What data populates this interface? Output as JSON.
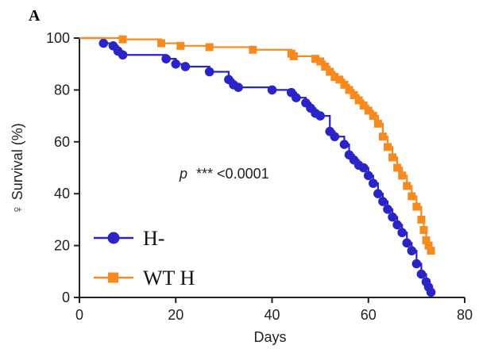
{
  "panel_label": "A",
  "chart_data": {
    "type": "line",
    "title": "",
    "xlabel": "Days",
    "ylabel": "♀ Survival (%)",
    "xlim": [
      0,
      80
    ],
    "ylim": [
      0,
      100
    ],
    "xticks": [
      "0",
      "20",
      "40",
      "60",
      "80"
    ],
    "yticks": [
      "0",
      "20",
      "40",
      "60",
      "80",
      "100"
    ],
    "grid": false,
    "legend_position": "bottom-left",
    "annotation": {
      "prefix": "p",
      "text": "*** <0.0001"
    },
    "series": [
      {
        "name": "H-",
        "color": "#2a24c8",
        "marker": "circle",
        "points": [
          [
            0,
            100
          ],
          [
            5,
            98
          ],
          [
            7,
            97
          ],
          [
            8,
            95
          ],
          [
            9,
            93.5
          ],
          [
            18,
            92
          ],
          [
            20,
            90
          ],
          [
            22,
            89
          ],
          [
            27,
            87
          ],
          [
            31,
            84
          ],
          [
            32,
            82
          ],
          [
            33,
            81
          ],
          [
            40,
            80
          ],
          [
            44,
            79
          ],
          [
            45,
            77
          ],
          [
            47,
            75
          ],
          [
            48,
            73
          ],
          [
            49,
            71
          ],
          [
            50,
            70
          ],
          [
            52,
            64
          ],
          [
            53,
            62
          ],
          [
            55,
            59
          ],
          [
            56,
            55
          ],
          [
            57,
            53
          ],
          [
            58,
            51
          ],
          [
            59,
            50
          ],
          [
            60,
            47
          ],
          [
            61,
            44
          ],
          [
            62,
            40
          ],
          [
            63,
            37
          ],
          [
            64,
            34
          ],
          [
            65,
            31
          ],
          [
            66,
            28
          ],
          [
            67,
            25
          ],
          [
            68,
            21
          ],
          [
            69,
            18
          ],
          [
            70,
            13
          ],
          [
            71,
            9
          ],
          [
            72,
            6
          ],
          [
            72.5,
            4
          ],
          [
            73,
            2
          ]
        ]
      },
      {
        "name": "WT H",
        "color": "#f7891f",
        "marker": "square",
        "points": [
          [
            0,
            100
          ],
          [
            9,
            99.5
          ],
          [
            17,
            98
          ],
          [
            21,
            97
          ],
          [
            27,
            96.5
          ],
          [
            36,
            95.5
          ],
          [
            44,
            94
          ],
          [
            44.5,
            93
          ],
          [
            49,
            92
          ],
          [
            50,
            91
          ],
          [
            51,
            89
          ],
          [
            52,
            87
          ],
          [
            53,
            85
          ],
          [
            54,
            84
          ],
          [
            55,
            82
          ],
          [
            56,
            80
          ],
          [
            57,
            78
          ],
          [
            58,
            76
          ],
          [
            59,
            74
          ],
          [
            60,
            72
          ],
          [
            61,
            70
          ],
          [
            62,
            67
          ],
          [
            63,
            62
          ],
          [
            64,
            58
          ],
          [
            65,
            54
          ],
          [
            66,
            50
          ],
          [
            67,
            47
          ],
          [
            68,
            43
          ],
          [
            69,
            39
          ],
          [
            70,
            35
          ],
          [
            71,
            30
          ],
          [
            71.5,
            26
          ],
          [
            72,
            22
          ],
          [
            72.5,
            20
          ],
          [
            73,
            18
          ]
        ]
      }
    ]
  }
}
